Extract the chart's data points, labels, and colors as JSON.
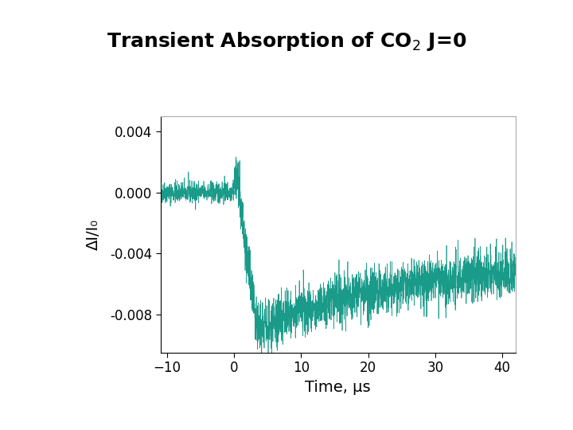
{
  "title": "Transient Absorption of CO$_2$ J=0",
  "xlabel": "Time, μs",
  "ylabel": "ΔI/I₀",
  "xlim": [
    -11,
    42
  ],
  "ylim": [
    -0.0105,
    0.005
  ],
  "yticks": [
    0.004,
    0.0,
    -0.004,
    -0.008
  ],
  "xticks": [
    -10,
    0,
    10,
    20,
    30,
    40
  ],
  "line_color": "#1a9b8a",
  "bg_color": "#ffffff",
  "noise_seed": 42,
  "line_width": 0.5,
  "title_fontsize": 18,
  "label_fontsize": 14,
  "tick_fontsize": 12
}
